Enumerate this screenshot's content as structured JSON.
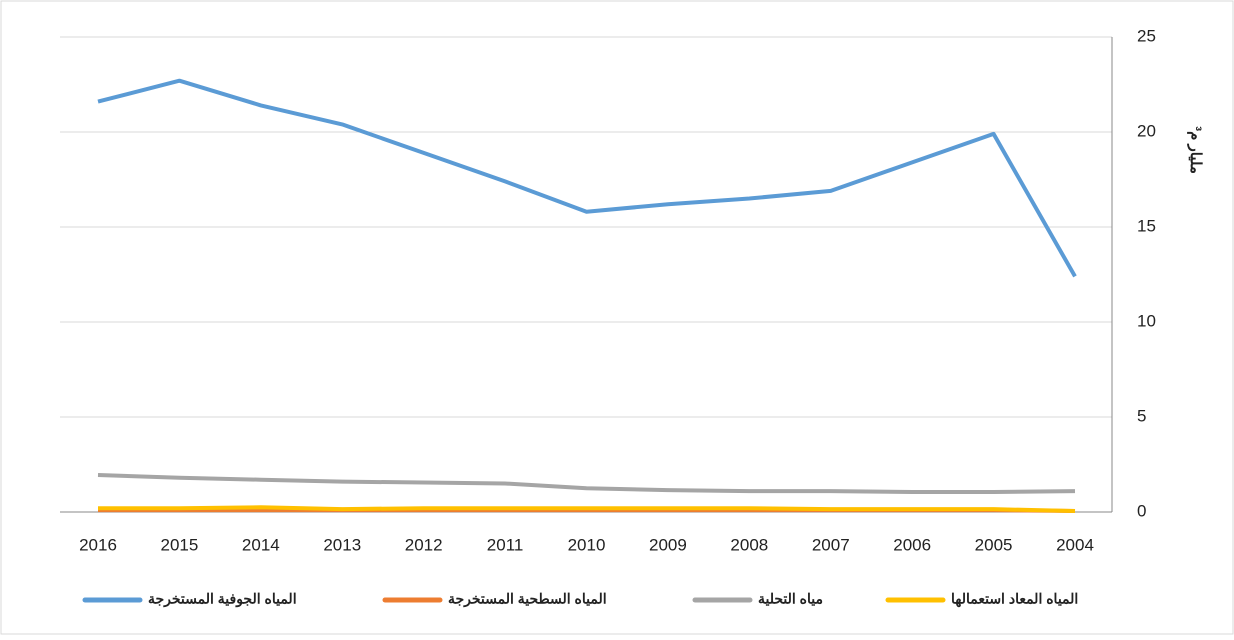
{
  "chart_data": {
    "type": "line",
    "y_label": "مليار م³",
    "categories": [
      "2016",
      "2015",
      "2014",
      "2013",
      "2012",
      "2011",
      "2010",
      "2009",
      "2008",
      "2007",
      "2006",
      "2005",
      "2004"
    ],
    "series": [
      {
        "name": "المياه الجوفية المستخرجة",
        "color": "#5b9bd5",
        "values": [
          21.6,
          22.7,
          21.4,
          20.4,
          18.9,
          17.4,
          15.8,
          16.2,
          16.5,
          16.9,
          18.4,
          19.9,
          12.4
        ]
      },
      {
        "name": "المياه السطحية المستخرجة",
        "color": "#ed7d31",
        "values": [
          0.1,
          0.1,
          0.1,
          0.1,
          0.1,
          0.1,
          0.1,
          0.1,
          0.1,
          0.1,
          0.1,
          0.1,
          0.05
        ]
      },
      {
        "name": "مياه التحلية",
        "color": "#a5a5a5",
        "values": [
          1.95,
          1.8,
          1.7,
          1.6,
          1.55,
          1.5,
          1.25,
          1.15,
          1.1,
          1.1,
          1.05,
          1.05,
          1.1
        ]
      },
      {
        "name": "المياه المعاد استعمالها",
        "color": "#ffc000",
        "values": [
          0.2,
          0.2,
          0.25,
          0.15,
          0.2,
          0.2,
          0.2,
          0.2,
          0.2,
          0.15,
          0.15,
          0.15,
          0.05
        ]
      }
    ],
    "ylim": [
      0,
      25
    ],
    "yticks": [
      0,
      5,
      10,
      15,
      20,
      25
    ],
    "grid": true,
    "y_axis_side": "right",
    "legend": "bottom"
  }
}
